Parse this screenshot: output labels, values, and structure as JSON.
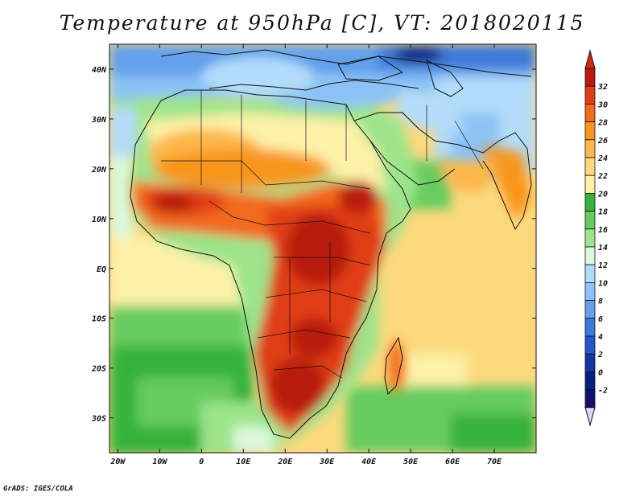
{
  "title": "Temperature at 950hPa [C], VT: 2018020115",
  "credit": "GrADS: IGES/COLA",
  "map": {
    "type": "filled-contour map",
    "lon_range": [
      -22,
      80
    ],
    "lat_range": [
      -37,
      45
    ],
    "lat_ticks": [
      {
        "value": 40,
        "label": "40N"
      },
      {
        "value": 30,
        "label": "30N"
      },
      {
        "value": 20,
        "label": "20N"
      },
      {
        "value": 10,
        "label": "10N"
      },
      {
        "value": 0,
        "label": "EQ"
      },
      {
        "value": -10,
        "label": "10S"
      },
      {
        "value": -20,
        "label": "20S"
      },
      {
        "value": -30,
        "label": "30S"
      }
    ],
    "lon_ticks": [
      {
        "value": -20,
        "label": "20W"
      },
      {
        "value": -10,
        "label": "10W"
      },
      {
        "value": 0,
        "label": "0"
      },
      {
        "value": 10,
        "label": "10E"
      },
      {
        "value": 20,
        "label": "20E"
      },
      {
        "value": 30,
        "label": "30E"
      },
      {
        "value": 40,
        "label": "40E"
      },
      {
        "value": 50,
        "label": "50E"
      },
      {
        "value": 60,
        "label": "60E"
      },
      {
        "value": 70,
        "label": "70E"
      }
    ]
  },
  "colorbar": {
    "labels": [
      "32",
      "30",
      "28",
      "26",
      "24",
      "22",
      "20",
      "18",
      "16",
      "14",
      "12",
      "10",
      "8",
      "6",
      "4",
      "2",
      "0",
      "-2"
    ],
    "colors": [
      "#b81a0d",
      "#e03c19",
      "#f36b1a",
      "#f8961c",
      "#fdb74a",
      "#fcd97c",
      "#fdf1a8",
      "#34b23b",
      "#66cc5e",
      "#9de48b",
      "#dcf8dc",
      "#b3dcfa",
      "#8cc2f5",
      "#62a0ec",
      "#3d79d9",
      "#2357c8",
      "#1236a7",
      "#0a1f7f",
      "#131070"
    ],
    "overflow_color": "#d22c10",
    "underflow_color": "#dcd6f7"
  }
}
